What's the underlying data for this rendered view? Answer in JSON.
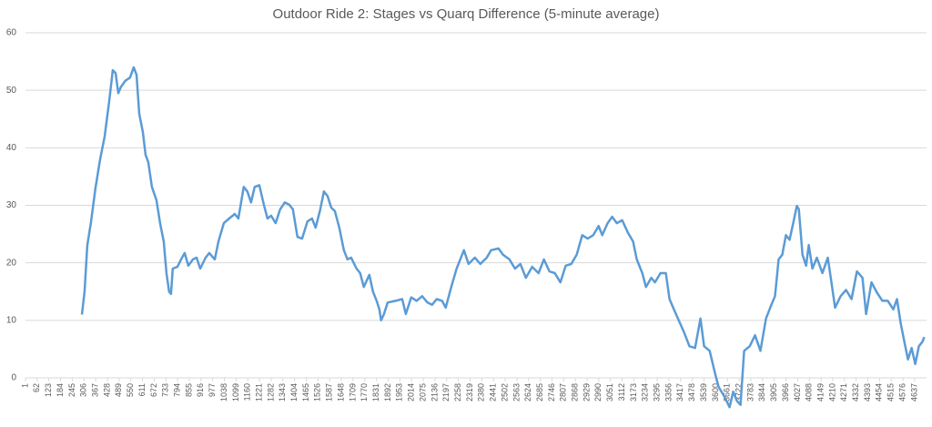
{
  "chart_data": {
    "type": "line",
    "title": "Outdoor Ride 2: Stages vs Quarq Difference (5-minute average)",
    "xlim": [
      1,
      4699
    ],
    "xticks": [
      1,
      62,
      123,
      184,
      245,
      306,
      367,
      428,
      489,
      550,
      611,
      672,
      733,
      794,
      855,
      916,
      977,
      1038,
      1099,
      1160,
      1221,
      1282,
      1343,
      1404,
      1465,
      1526,
      1587,
      1648,
      1709,
      1770,
      1831,
      1892,
      1953,
      2014,
      2075,
      2136,
      2197,
      2258,
      2319,
      2380,
      2441,
      2502,
      2563,
      2624,
      2685,
      2746,
      2807,
      2868,
      2929,
      2990,
      3051,
      3112,
      3173,
      3234,
      3295,
      3356,
      3417,
      3478,
      3539,
      3600,
      3661,
      3722,
      3783,
      3844,
      3905,
      3966,
      4027,
      4088,
      4149,
      4210,
      4271,
      4332,
      4393,
      4454,
      4515,
      4576,
      4637
    ],
    "ylim": [
      0,
      60
    ],
    "yticks": [
      0,
      10,
      20,
      30,
      40,
      50,
      60
    ],
    "grid": true,
    "series": [
      {
        "color": "#5b9bd5",
        "x": [
          295,
          309,
          323,
          342,
          366,
          390,
          414,
          437,
          456,
          471,
          485,
          499,
          523,
          546,
          565,
          580,
          594,
          613,
          627,
          641,
          660,
          684,
          703,
          722,
          736,
          750,
          760,
          769,
          793,
          817,
          831,
          850,
          874,
          893,
          912,
          940,
          959,
          988,
          1007,
          1035,
          1063,
          1092,
          1111,
          1139,
          1158,
          1177,
          1196,
          1220,
          1244,
          1263,
          1282,
          1305,
          1329,
          1353,
          1376,
          1395,
          1419,
          1443,
          1471,
          1495,
          1514,
          1538,
          1557,
          1576,
          1595,
          1614,
          1637,
          1661,
          1680,
          1699,
          1727,
          1746,
          1765,
          1794,
          1813,
          1832,
          1846,
          1855,
          1870,
          1889,
          1931,
          1965,
          1984,
          2012,
          2040,
          2069,
          2097,
          2121,
          2145,
          2173,
          2192,
          2221,
          2249,
          2287,
          2311,
          2344,
          2373,
          2406,
          2429,
          2467,
          2491,
          2524,
          2553,
          2581,
          2610,
          2643,
          2676,
          2704,
          2733,
          2761,
          2790,
          2818,
          2847,
          2875,
          2904,
          2932,
          2961,
          2989,
          3008,
          3036,
          3060,
          3084,
          3112,
          3141,
          3169,
          3188,
          3217,
          3236,
          3264,
          3283,
          3312,
          3340,
          3359,
          3378,
          3407,
          3435,
          3463,
          3492,
          3520,
          3539,
          3568,
          3596,
          3615,
          3644,
          3672,
          3691,
          3710,
          3729,
          3748,
          3777,
          3805,
          3833,
          3862,
          3890,
          3909,
          3928,
          3947,
          3966,
          3985,
          4004,
          4023,
          4033,
          4052,
          4071,
          4085,
          4104,
          4127,
          4156,
          4184,
          4203,
          4222,
          4251,
          4279,
          4308,
          4336,
          4365,
          4384,
          4412,
          4441,
          4469,
          4497,
          4526,
          4545,
          4564,
          4583,
          4602,
          4621,
          4640,
          4659,
          4678,
          4687
        ],
        "values": [
          11,
          15,
          23,
          27,
          33,
          38,
          42,
          48,
          53.5,
          53,
          49.5,
          50.6,
          51.7,
          52.2,
          54,
          52.7,
          45.9,
          42.7,
          38.8,
          37.5,
          33.2,
          30.9,
          26.9,
          23.7,
          18.2,
          15,
          14.6,
          19,
          19.3,
          20.9,
          21.7,
          19.5,
          20.6,
          20.9,
          19,
          20.9,
          21.7,
          20.6,
          23.7,
          26.9,
          27.7,
          28.5,
          27.7,
          33.2,
          32.4,
          30.5,
          33.2,
          33.5,
          30.1,
          27.7,
          28.2,
          26.9,
          29.3,
          30.5,
          30.1,
          29.3,
          24.5,
          24.2,
          27.2,
          27.7,
          26.1,
          29.3,
          32.4,
          31.6,
          29.6,
          29,
          26.1,
          22.2,
          20.6,
          20.9,
          19,
          18.2,
          15.8,
          17.9,
          15,
          13.4,
          11.9,
          10,
          11.1,
          13.1,
          13.4,
          13.7,
          11.1,
          14,
          13.4,
          14.2,
          13.1,
          12.7,
          13.7,
          13.4,
          12.2,
          15.8,
          19,
          22.2,
          19.8,
          20.9,
          19.8,
          20.9,
          22.2,
          22.5,
          21.4,
          20.6,
          19,
          19.8,
          17.4,
          19.3,
          18.2,
          20.6,
          18.5,
          18.2,
          16.6,
          19.5,
          19.8,
          21.4,
          24.8,
          24.2,
          24.8,
          26.4,
          24.8,
          26.9,
          28,
          26.9,
          27.4,
          25.3,
          23.7,
          20.6,
          18.2,
          15.8,
          17.4,
          16.6,
          18.2,
          18.2,
          13.7,
          12.2,
          10,
          7.9,
          5.5,
          5.2,
          10.3,
          5.5,
          4.7,
          0.8,
          -1.6,
          -3.2,
          -5.1,
          -2.4,
          -4,
          -4.7,
          4.7,
          5.5,
          7.4,
          4.7,
          10.3,
          12.7,
          14.2,
          20.6,
          21.4,
          24.8,
          24,
          26.9,
          29.9,
          29.3,
          21.4,
          19.5,
          23.1,
          19,
          20.9,
          18.2,
          20.9,
          16.6,
          12.2,
          14.2,
          15.3,
          13.7,
          18.5,
          17.4,
          11.1,
          16.6,
          14.8,
          13.4,
          13.4,
          11.9,
          13.7,
          9.5,
          6.3,
          3.2,
          5.2,
          2.4,
          5.5,
          6.3,
          7.1
        ]
      }
    ]
  }
}
